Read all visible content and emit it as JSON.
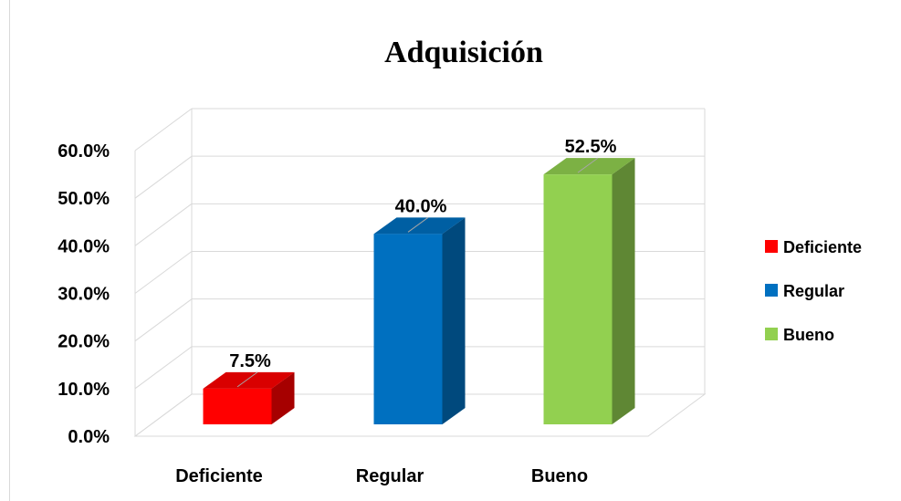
{
  "chart_data": {
    "type": "bar3d",
    "title": "Adquisición",
    "categories": [
      "Deficiente",
      "Regular",
      "Bueno"
    ],
    "values": [
      7.5,
      40,
      52.5
    ],
    "value_labels": [
      "7.5%",
      "40.0%",
      "52.5%"
    ],
    "colors": [
      "#ff0000",
      "#0070c0",
      "#92d050"
    ],
    "ylim": [
      0,
      60
    ],
    "yticks": [
      {
        "value": 0,
        "label": "0.0%"
      },
      {
        "value": 10,
        "label": "10.0%"
      },
      {
        "value": 20,
        "label": "20.0%"
      },
      {
        "value": 30,
        "label": "30.0%"
      },
      {
        "value": 40,
        "label": "40.0%"
      },
      {
        "value": 50,
        "label": "50.0%"
      },
      {
        "value": 60,
        "label": "60.0%"
      }
    ],
    "grid": true,
    "legend": "right"
  }
}
